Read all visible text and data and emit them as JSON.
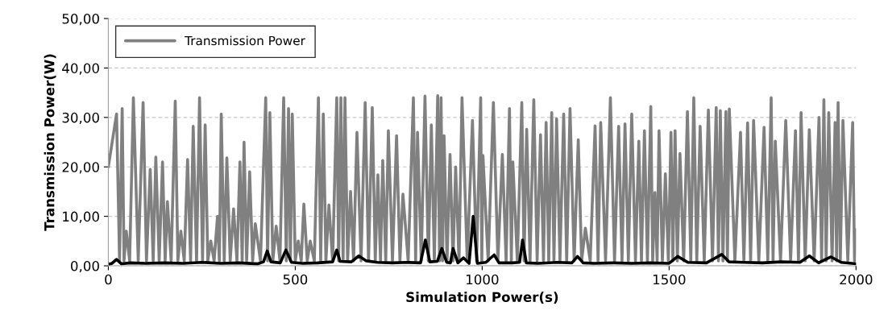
{
  "chart_data": {
    "type": "line",
    "xlabel": "Simulation Power(s)",
    "ylabel": "Transmission Power(W)",
    "xlim": [
      0,
      2000
    ],
    "xticks": [
      0,
      500,
      1000,
      1500,
      2000
    ],
    "ylim": [
      0,
      50
    ],
    "yticks": [
      {
        "value": 0,
        "label": "0,00"
      },
      {
        "value": 10,
        "label": "10,00"
      },
      {
        "value": 20,
        "label": "20,00"
      },
      {
        "value": 30,
        "label": "30,00"
      },
      {
        "value": 40,
        "label": "40,00"
      },
      {
        "value": 50,
        "label": "50,00"
      }
    ],
    "grid": "y",
    "legend": "top left",
    "series": [
      {
        "name": "Transmission Power",
        "color": "#808080",
        "x": [
          0,
          22,
          30,
          37,
          42,
          48,
          57,
          67,
          80,
          93,
          102,
          112,
          120,
          127,
          136,
          145,
          152,
          158,
          168,
          179,
          186,
          194,
          203,
          212,
          220,
          227,
          236,
          244,
          252,
          259,
          266,
          274,
          283,
          292,
          297,
          302,
          310,
          317,
          326,
          335,
          344,
          352,
          358,
          363,
          370,
          378,
          386,
          393,
          407,
          421,
          426,
          432,
          440,
          449,
          459,
          469,
          476,
          482,
          487,
          492,
          500,
          508,
          516,
          523,
          532,
          540,
          551,
          562,
          568,
          575,
          582,
          590,
          600,
          611,
          616,
          622,
          628,
          633,
          640,
          648,
          656,
          665,
          676,
          687,
          696,
          706,
          714,
          721,
          728,
          734,
          742,
          749,
          760,
          771,
          780,
          788,
          802,
          816,
          822,
          827,
          837,
          847,
          856,
          864,
          872,
          881,
          886,
          890,
          894,
          898,
          906,
          914,
          922,
          929,
          938,
          946,
          960,
          974,
          985,
          996,
          999,
          1002,
          1016,
          1030,
          1042,
          1054,
          1064,
          1073,
          1078,
          1082,
          1094,
          1106,
          1112,
          1119,
          1128,
          1138,
          1147,
          1156,
          1164,
          1171,
          1178,
          1186,
          1192,
          1199,
          1208,
          1218,
          1226,
          1235,
          1246,
          1257,
          1266,
          1276,
          1289,
          1302,
          1310,
          1317,
          1330,
          1343,
          1354,
          1365,
          1374,
          1382,
          1391,
          1400,
          1410,
          1419,
          1426,
          1434,
          1442,
          1451,
          1456,
          1462,
          1468,
          1473,
          1482,
          1490,
          1498,
          1505,
          1510,
          1516,
          1522,
          1529,
          1539,
          1549,
          1558,
          1566,
          1574,
          1583,
          1594,
          1605,
          1616,
          1626,
          1632,
          1637,
          1644,
          1652,
          1656,
          1661,
          1676,
          1691,
          1700,
          1710,
          1718,
          1726,
          1740,
          1754,
          1764,
          1773,
          1778,
          1784,
          1798,
          1812,
          1825,
          1838,
          1846,
          1853,
          1864,
          1875,
          1888,
          1901,
          1908,
          1914,
          1920,
          1927,
          1936,
          1944,
          1948,
          1952,
          1958,
          1965,
          1978,
          1991,
          1996,
          2000
        ],
        "values": [
          20,
          30.7,
          1,
          31.8,
          1,
          7,
          1,
          34,
          1,
          33,
          1,
          19.5,
          1,
          22,
          1,
          21,
          1,
          13,
          1,
          33.3,
          1,
          7,
          1,
          21.5,
          1,
          28.2,
          1,
          34,
          1,
          28.5,
          1,
          5,
          1,
          10,
          1,
          30.7,
          1,
          21.8,
          1,
          11.5,
          1,
          21,
          1,
          25,
          1,
          19,
          1,
          8.5,
          1,
          34,
          1,
          31,
          1,
          8,
          1,
          34,
          1,
          31.8,
          1,
          30.7,
          1,
          5,
          1,
          12.5,
          1,
          5,
          1,
          34,
          1,
          30.7,
          1,
          12.3,
          1,
          34,
          1,
          34,
          1,
          34,
          1,
          15,
          1,
          27,
          1,
          33,
          1,
          32,
          1,
          18.4,
          1,
          21.3,
          1,
          27.3,
          1,
          26.3,
          1,
          14.5,
          1,
          34,
          1,
          27,
          1,
          34.3,
          1,
          28.5,
          1,
          34.4,
          1,
          34,
          1,
          26.3,
          1,
          22.5,
          1,
          20,
          1,
          34,
          1,
          29.4,
          1,
          34,
          1,
          22.3,
          1,
          33,
          1,
          22.5,
          1,
          31.8,
          1,
          21,
          1,
          33,
          1,
          27.6,
          1,
          33.6,
          1,
          26.5,
          1,
          29,
          1,
          31,
          1,
          29.7,
          1,
          30.7,
          1,
          31.8,
          1,
          25.5,
          1,
          7.6,
          1,
          28.3,
          1,
          29,
          1,
          34,
          1,
          28.2,
          1,
          28.7,
          1,
          30.7,
          1,
          25.2,
          1,
          27.3,
          1,
          32.2,
          1,
          14.8,
          1,
          27.3,
          1,
          18.6,
          1,
          27,
          1,
          27.3,
          1,
          22.7,
          1,
          31.2,
          1,
          34,
          1,
          28.2,
          1,
          31.5,
          1,
          32,
          1,
          31.4,
          1,
          31.2,
          1,
          31.7,
          1,
          27,
          1,
          28.9,
          1,
          29.4,
          1,
          28,
          1,
          34,
          1,
          25.2,
          1,
          29.4,
          1,
          27.3,
          1,
          31,
          1,
          27.5,
          1,
          30,
          1,
          33.6,
          1,
          31,
          1,
          29,
          1,
          33,
          1,
          29.4,
          1,
          29,
          1,
          7.3
        ]
      },
      {
        "color": "#000000",
        "x": [
          0,
          10,
          22,
          35,
          60,
          100,
          150,
          200,
          250,
          300,
          350,
          400,
          415,
          425,
          435,
          460,
          475,
          490,
          520,
          560,
          600,
          611,
          620,
          650,
          670,
          690,
          720,
          760,
          800,
          835,
          848,
          860,
          880,
          892,
          905,
          915,
          922,
          935,
          950,
          965,
          976,
          987,
          1010,
          1032,
          1045,
          1080,
          1100,
          1108,
          1118,
          1150,
          1200,
          1240,
          1255,
          1270,
          1300,
          1350,
          1400,
          1450,
          1500,
          1523,
          1550,
          1600,
          1641,
          1660,
          1700,
          1750,
          1800,
          1850,
          1875,
          1900,
          1933,
          1960,
          2000
        ],
        "values": [
          0.3,
          0.5,
          1.3,
          0.4,
          0.6,
          0.5,
          0.6,
          0.5,
          0.7,
          0.5,
          0.6,
          0.4,
          0.8,
          3,
          0.8,
          0.6,
          3.2,
          0.7,
          0.5,
          0.6,
          0.8,
          3.2,
          0.9,
          0.8,
          2,
          1,
          0.7,
          0.6,
          0.7,
          0.6,
          5.2,
          0.8,
          0.9,
          3.5,
          0.7,
          0.6,
          3.5,
          0.6,
          1.6,
          0.5,
          10,
          0.5,
          0.7,
          2.2,
          0.6,
          0.6,
          0.7,
          5.2,
          0.6,
          0.5,
          0.7,
          0.6,
          1.9,
          0.6,
          0.5,
          0.6,
          0.5,
          0.6,
          0.5,
          1.9,
          0.7,
          0.6,
          2.3,
          0.8,
          0.7,
          0.6,
          0.8,
          0.7,
          2,
          0.6,
          1.8,
          0.7,
          0.4
        ]
      }
    ]
  }
}
